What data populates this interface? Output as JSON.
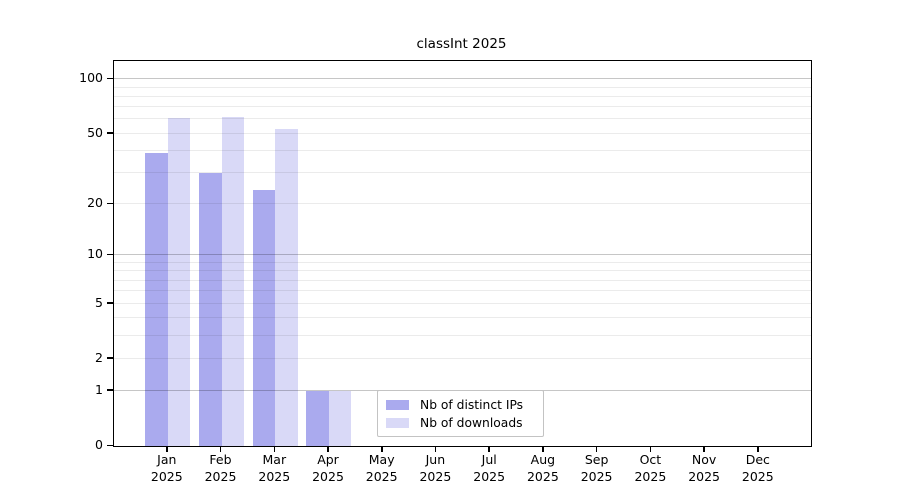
{
  "chart_data": {
    "type": "bar",
    "title": "classInt 2025",
    "categories": [
      "Jan",
      "Feb",
      "Mar",
      "Apr",
      "May",
      "Jun",
      "Jul",
      "Aug",
      "Sep",
      "Oct",
      "Nov",
      "Dec"
    ],
    "category_year": "2025",
    "series": [
      {
        "name": "Nb of distinct IPs",
        "color": "#aaaaee",
        "values": [
          39,
          30,
          24,
          1,
          0,
          0,
          0,
          0,
          0,
          0,
          0,
          0
        ]
      },
      {
        "name": "Nb of downloads",
        "color": "#d9d9f7",
        "values": [
          61,
          62,
          53,
          1,
          0,
          0,
          0,
          0,
          0,
          0,
          0,
          0
        ]
      }
    ],
    "yscale": "log10(value+1)",
    "ylim": [
      0,
      126
    ],
    "yticks": [
      0,
      1,
      2,
      5,
      10,
      20,
      50,
      100
    ],
    "grid": {
      "major_values": [
        1,
        10,
        100
      ],
      "minor_values": [
        2,
        3,
        4,
        5,
        6,
        7,
        8,
        9,
        20,
        30,
        40,
        50,
        60,
        70,
        80,
        90
      ],
      "major_color": "#c6c6c6",
      "minor_color": "#ebebeb"
    },
    "legend_position": "bottom-center-inside",
    "axis_color": "#000000",
    "background_color": "#ffffff"
  }
}
